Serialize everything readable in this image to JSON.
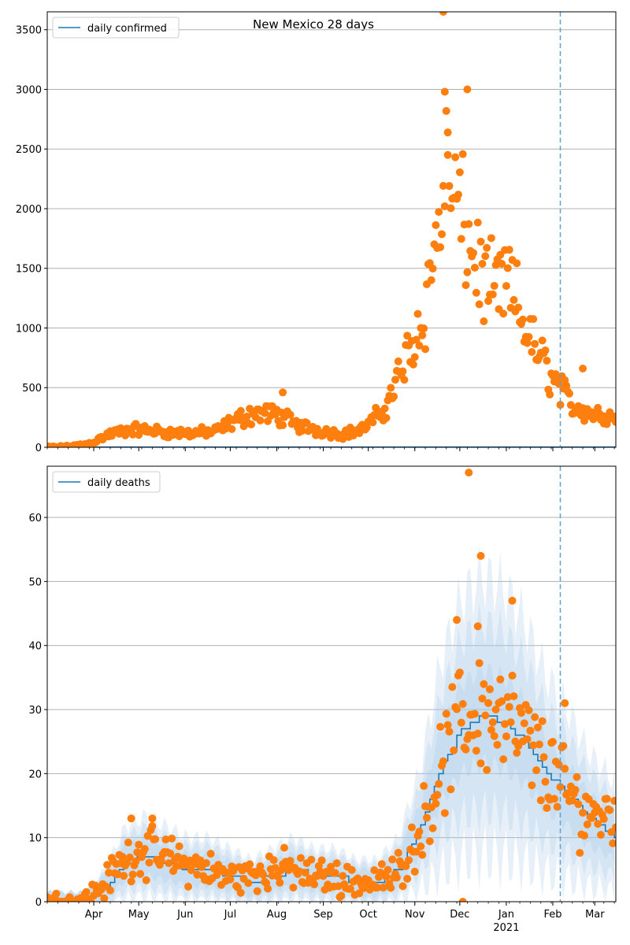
{
  "figure_title": "New Mexico 28 days",
  "x_axis": {
    "month_ticks": [
      "Apr",
      "May",
      "Jun",
      "Jul",
      "Aug",
      "Sep",
      "Oct",
      "Nov",
      "Dec",
      "Jan",
      "Feb",
      "Mar"
    ],
    "year_label": "2021"
  },
  "colors": {
    "line": "#1f77b4",
    "points": "#ff7f0e",
    "band": "#a8c8e6",
    "vline": "#5fa2ce",
    "grid": "#b0b0b0"
  },
  "chart_data": [
    {
      "type": "scatter",
      "title": "New Mexico 28 days",
      "legend": {
        "label": "daily confirmed",
        "placement": "top-left"
      },
      "x_range": [
        "2020-03-01",
        "2021-03-15"
      ],
      "ylim": [
        0,
        3650
      ],
      "yticks": [
        0,
        500,
        1000,
        1500,
        2000,
        2500,
        3000,
        3500
      ],
      "grid": "horizontal",
      "forecast_start": "2021-02-06",
      "model_line": "near zero across the whole range",
      "points_weekly_avg": [
        {
          "date": "2020-03-01",
          "value": 0
        },
        {
          "date": "2020-03-15",
          "value": 5
        },
        {
          "date": "2020-03-29",
          "value": 30
        },
        {
          "date": "2020-04-12",
          "value": 110
        },
        {
          "date": "2020-04-26",
          "value": 150
        },
        {
          "date": "2020-05-10",
          "value": 140
        },
        {
          "date": "2020-05-24",
          "value": 120
        },
        {
          "date": "2020-06-07",
          "value": 120
        },
        {
          "date": "2020-06-21",
          "value": 130
        },
        {
          "date": "2020-07-05",
          "value": 230
        },
        {
          "date": "2020-07-19",
          "value": 290
        },
        {
          "date": "2020-08-02",
          "value": 270
        },
        {
          "date": "2020-08-16",
          "value": 180
        },
        {
          "date": "2020-08-30",
          "value": 140
        },
        {
          "date": "2020-09-13",
          "value": 110
        },
        {
          "date": "2020-09-27",
          "value": 150
        },
        {
          "date": "2020-10-11",
          "value": 300
        },
        {
          "date": "2020-10-25",
          "value": 700
        },
        {
          "date": "2020-11-08",
          "value": 1150
        },
        {
          "date": "2020-11-22",
          "value": 2300
        },
        {
          "date": "2020-12-06",
          "value": 1750
        },
        {
          "date": "2020-12-20",
          "value": 1300
        },
        {
          "date": "2021-01-03",
          "value": 1350
        },
        {
          "date": "2021-01-17",
          "value": 900
        },
        {
          "date": "2021-01-31",
          "value": 600
        },
        {
          "date": "2021-02-14",
          "value": 350
        },
        {
          "date": "2021-02-28",
          "value": 280
        },
        {
          "date": "2021-03-15",
          "value": 250
        }
      ],
      "notable_points": [
        {
          "date": "2020-11-20",
          "value": 3650
        },
        {
          "date": "2020-11-21",
          "value": 2980
        },
        {
          "date": "2020-12-06",
          "value": 3000
        },
        {
          "date": "2020-11-23",
          "value": 2450
        },
        {
          "date": "2020-08-05",
          "value": 460
        },
        {
          "date": "2021-02-21",
          "value": 660
        }
      ]
    },
    {
      "type": "line",
      "legend": {
        "label": "daily deaths",
        "placement": "top-left"
      },
      "x_range": [
        "2020-03-01",
        "2021-03-15"
      ],
      "ylim": [
        0,
        68
      ],
      "yticks": [
        0,
        10,
        20,
        30,
        40,
        50,
        60
      ],
      "grid": "horizontal",
      "forecast_start": "2021-02-06",
      "line": [
        {
          "date": "2020-03-01",
          "value": 0
        },
        {
          "date": "2020-03-25",
          "value": 0
        },
        {
          "date": "2020-04-08",
          "value": 2
        },
        {
          "date": "2020-04-22",
          "value": 6
        },
        {
          "date": "2020-05-06",
          "value": 7
        },
        {
          "date": "2020-05-20",
          "value": 6
        },
        {
          "date": "2020-06-03",
          "value": 5
        },
        {
          "date": "2020-06-17",
          "value": 5
        },
        {
          "date": "2020-07-01",
          "value": 4
        },
        {
          "date": "2020-07-15",
          "value": 3
        },
        {
          "date": "2020-07-29",
          "value": 4
        },
        {
          "date": "2020-08-12",
          "value": 5
        },
        {
          "date": "2020-08-26",
          "value": 4
        },
        {
          "date": "2020-09-09",
          "value": 4
        },
        {
          "date": "2020-09-23",
          "value": 3
        },
        {
          "date": "2020-10-07",
          "value": 3
        },
        {
          "date": "2020-10-21",
          "value": 5
        },
        {
          "date": "2020-11-04",
          "value": 11
        },
        {
          "date": "2020-11-18",
          "value": 21
        },
        {
          "date": "2020-12-02",
          "value": 27
        },
        {
          "date": "2020-12-16",
          "value": 29
        },
        {
          "date": "2020-12-30",
          "value": 28
        },
        {
          "date": "2021-01-13",
          "value": 25
        },
        {
          "date": "2021-01-27",
          "value": 20
        },
        {
          "date": "2021-02-10",
          "value": 17
        },
        {
          "date": "2021-02-24",
          "value": 13
        },
        {
          "date": "2021-03-15",
          "value": 10
        }
      ],
      "points_weekly_avg": [
        {
          "date": "2020-03-01",
          "value": 0
        },
        {
          "date": "2020-03-22",
          "value": 0
        },
        {
          "date": "2020-04-05",
          "value": 2
        },
        {
          "date": "2020-04-19",
          "value": 6
        },
        {
          "date": "2020-05-03",
          "value": 8
        },
        {
          "date": "2020-05-17",
          "value": 7
        },
        {
          "date": "2020-05-31",
          "value": 6
        },
        {
          "date": "2020-06-14",
          "value": 5
        },
        {
          "date": "2020-06-28",
          "value": 4
        },
        {
          "date": "2020-07-12",
          "value": 4
        },
        {
          "date": "2020-07-26",
          "value": 5
        },
        {
          "date": "2020-08-09",
          "value": 5
        },
        {
          "date": "2020-08-23",
          "value": 4
        },
        {
          "date": "2020-09-06",
          "value": 4
        },
        {
          "date": "2020-09-20",
          "value": 3
        },
        {
          "date": "2020-10-04",
          "value": 3
        },
        {
          "date": "2020-10-18",
          "value": 4
        },
        {
          "date": "2020-11-01",
          "value": 9
        },
        {
          "date": "2020-11-15",
          "value": 18
        },
        {
          "date": "2020-11-29",
          "value": 27
        },
        {
          "date": "2020-12-13",
          "value": 30
        },
        {
          "date": "2020-12-27",
          "value": 29
        },
        {
          "date": "2021-01-10",
          "value": 26
        },
        {
          "date": "2021-01-24",
          "value": 22
        },
        {
          "date": "2021-02-07",
          "value": 18
        },
        {
          "date": "2021-02-21",
          "value": 14
        },
        {
          "date": "2021-03-15",
          "value": 14
        }
      ],
      "notable_points": [
        {
          "date": "2020-12-07",
          "value": 67
        },
        {
          "date": "2020-12-15",
          "value": 54
        },
        {
          "date": "2021-01-05",
          "value": 47
        },
        {
          "date": "2020-12-13",
          "value": 43
        },
        {
          "date": "2020-11-29",
          "value": 44
        },
        {
          "date": "2020-12-03",
          "value": 0
        },
        {
          "date": "2021-02-09",
          "value": 31
        },
        {
          "date": "2020-04-26",
          "value": 13
        },
        {
          "date": "2020-05-10",
          "value": 13
        }
      ]
    }
  ]
}
